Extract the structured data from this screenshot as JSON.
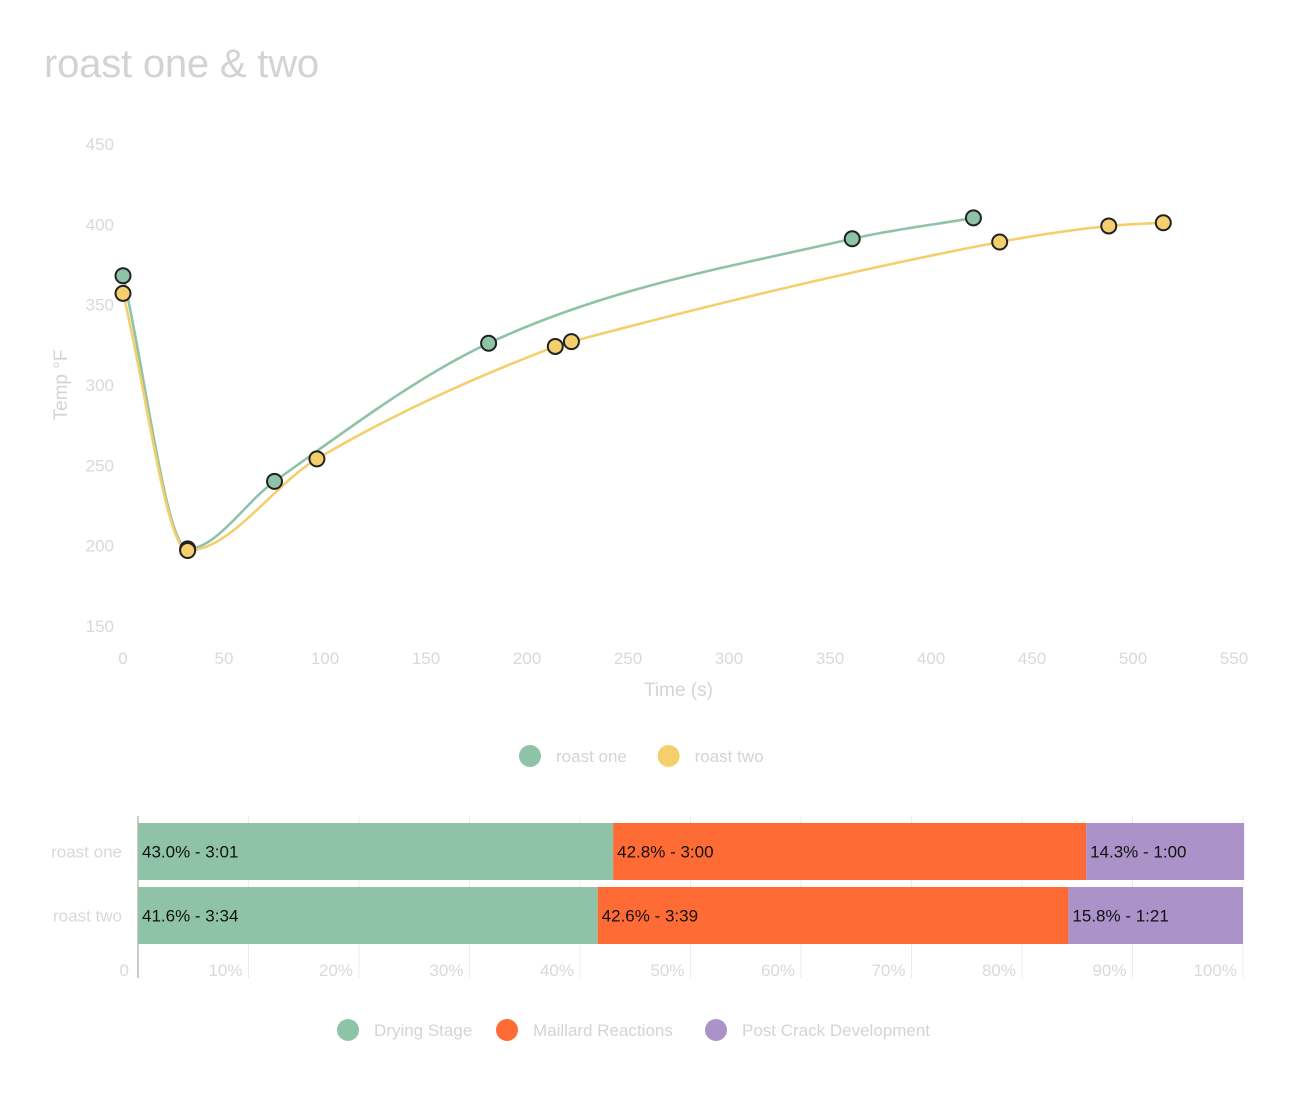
{
  "title": "roast one & two",
  "chart_data": [
    {
      "type": "line",
      "title": "roast one & two",
      "xlabel": "Time (s)",
      "ylabel": "Temp °F",
      "xlim": [
        0,
        550
      ],
      "ylim": [
        150,
        450
      ],
      "x_ticks": [
        "0",
        "50",
        "100",
        "150",
        "200",
        "250",
        "300",
        "350",
        "400",
        "450",
        "500",
        "550"
      ],
      "y_ticks": [
        "150",
        "200",
        "250",
        "300",
        "350",
        "400",
        "450"
      ],
      "legend": "bottom",
      "series": [
        {
          "name": "roast one",
          "color": "#8fc3a7",
          "points": [
            [
              0,
              368
            ],
            [
              32,
              198
            ],
            [
              75,
              240
            ],
            [
              181,
              326
            ],
            [
              361,
              391
            ],
            [
              421,
              404
            ]
          ]
        },
        {
          "name": "roast two",
          "color": "#f4cf6e",
          "points": [
            [
              0,
              357
            ],
            [
              32,
              197
            ],
            [
              96,
              254
            ],
            [
              214,
              324
            ],
            [
              222,
              327
            ],
            [
              434,
              389
            ],
            [
              488,
              399
            ],
            [
              515,
              401
            ]
          ]
        }
      ]
    },
    {
      "type": "bar",
      "orientation": "horizontal",
      "stacked": true,
      "categories": [
        "roast one",
        "roast two"
      ],
      "xlim": [
        0,
        100
      ],
      "x_ticks": [
        "0",
        "10%",
        "20%",
        "30%",
        "40%",
        "50%",
        "60%",
        "70%",
        "80%",
        "90%",
        "100%"
      ],
      "legend": "bottom",
      "series": [
        {
          "name": "Drying Stage",
          "color": "#8fc3a7",
          "values": [
            43.0,
            41.6
          ],
          "labels": [
            "43.0% - 3:01",
            "41.6% - 3:34"
          ]
        },
        {
          "name": "Maillard Reactions",
          "color": "#ff6b35",
          "values": [
            42.8,
            42.6
          ],
          "labels": [
            "42.8% - 3:00",
            "42.6% - 3:39"
          ]
        },
        {
          "name": "Post Crack Development",
          "color": "#ab93c9",
          "values": [
            14.3,
            15.8
          ],
          "labels": [
            "14.3% - 1:00",
            "15.8% - 1:21"
          ]
        }
      ]
    }
  ]
}
